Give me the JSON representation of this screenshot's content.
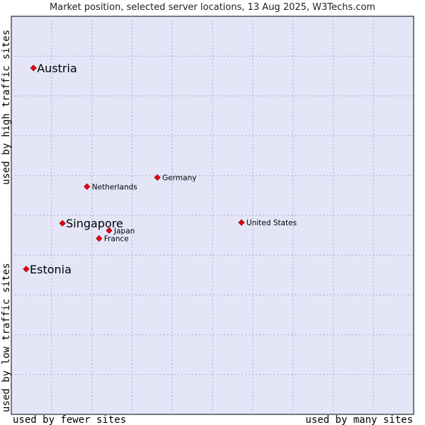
{
  "chart_data": {
    "type": "scatter",
    "title": "Market position, selected server locations, 13 Aug 2025, W3Techs.com",
    "xlabel_left": "used by fewer sites",
    "xlabel_right": "used by many sites",
    "ylabel_top": "used by high traffic sites",
    "ylabel_bottom": "used by low traffic sites",
    "xlim": [
      0,
      10
    ],
    "ylim": [
      0,
      10
    ],
    "grid": true,
    "points": [
      {
        "name": "Austria",
        "x": 0.55,
        "y": 8.7,
        "emphasis": true
      },
      {
        "name": "Germany",
        "x": 3.63,
        "y": 5.95,
        "emphasis": false
      },
      {
        "name": "Netherlands",
        "x": 1.88,
        "y": 5.72,
        "emphasis": false
      },
      {
        "name": "Singapore",
        "x": 1.27,
        "y": 4.8,
        "emphasis": true
      },
      {
        "name": "Japan",
        "x": 2.43,
        "y": 4.62,
        "emphasis": false
      },
      {
        "name": "France",
        "x": 2.18,
        "y": 4.42,
        "emphasis": false
      },
      {
        "name": "United States",
        "x": 5.72,
        "y": 4.82,
        "emphasis": false
      },
      {
        "name": "Estonia",
        "x": 0.37,
        "y": 3.65,
        "emphasis": true
      }
    ]
  },
  "colors": {
    "plot_bg": "#e4e6f8",
    "point": "#e8000d",
    "border": "#000000"
  }
}
